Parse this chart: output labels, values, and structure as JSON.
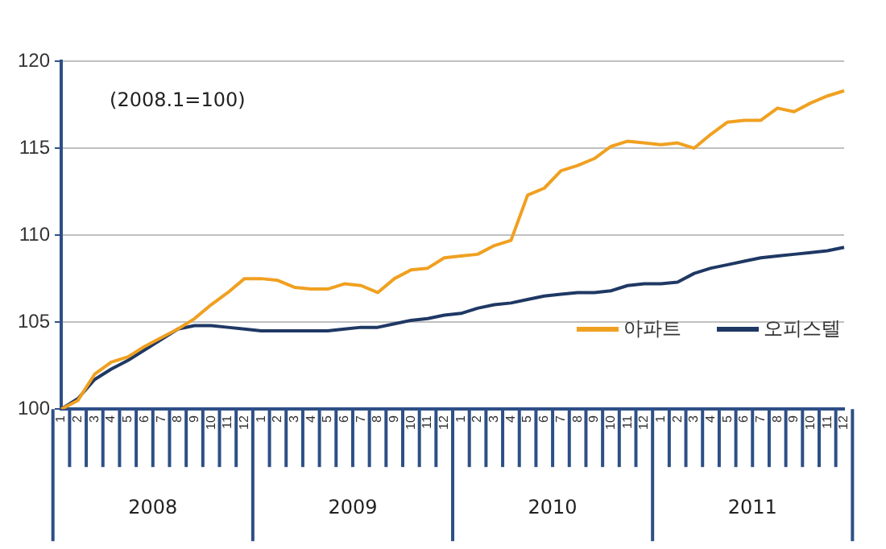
{
  "chart_data": {
    "type": "line",
    "categories": [
      "1",
      "2",
      "3",
      "4",
      "5",
      "6",
      "7",
      "8",
      "9",
      "10",
      "11",
      "12",
      "1",
      "2",
      "3",
      "4",
      "5",
      "6",
      "7",
      "8",
      "9",
      "10",
      "11",
      "12",
      "1",
      "2",
      "3",
      "4",
      "5",
      "6",
      "7",
      "8",
      "9",
      "10",
      "11",
      "12",
      "1",
      "2",
      "3",
      "4",
      "5",
      "6",
      "7",
      "8",
      "9",
      "10",
      "11",
      "12"
    ],
    "series": [
      {
        "name": "아파트",
        "color": "#f0a020",
        "values": [
          100,
          100.5,
          102.0,
          102.7,
          103.0,
          103.6,
          104.1,
          104.6,
          105.2,
          106.0,
          106.7,
          107.5,
          107.5,
          107.4,
          107.0,
          106.9,
          106.9,
          107.2,
          107.1,
          106.7,
          107.5,
          108.0,
          108.1,
          108.7,
          108.8,
          108.9,
          109.4,
          109.7,
          112.3,
          112.7,
          113.7,
          114.0,
          114.4,
          115.1,
          115.4,
          115.3,
          115.2,
          115.3,
          115.0,
          115.8,
          116.5,
          116.6,
          116.6,
          117.3,
          117.1,
          117.6,
          118.0,
          118.3
        ]
      },
      {
        "name": "오피스텔",
        "color": "#1f3864",
        "values": [
          100,
          100.6,
          101.7,
          102.3,
          102.8,
          103.4,
          104.0,
          104.6,
          104.8,
          104.8,
          104.7,
          104.6,
          104.5,
          104.5,
          104.5,
          104.5,
          104.5,
          104.6,
          104.7,
          104.7,
          104.9,
          105.1,
          105.2,
          105.4,
          105.5,
          105.8,
          106.0,
          106.1,
          106.3,
          106.5,
          106.6,
          106.7,
          106.7,
          106.8,
          107.1,
          107.2,
          107.2,
          107.3,
          107.8,
          108.1,
          108.3,
          108.5,
          108.7,
          108.8,
          108.9,
          109.0,
          109.1,
          109.3
        ]
      }
    ],
    "ylim": [
      100,
      120
    ],
    "yticks": [
      100,
      105,
      110,
      115,
      120
    ],
    "grid": "y",
    "legend": "right",
    "marker": "none",
    "line_style": "solid",
    "annotations": [
      "(2008.1=100)",
      "2008",
      "2009",
      "2010",
      "2011"
    ]
  }
}
